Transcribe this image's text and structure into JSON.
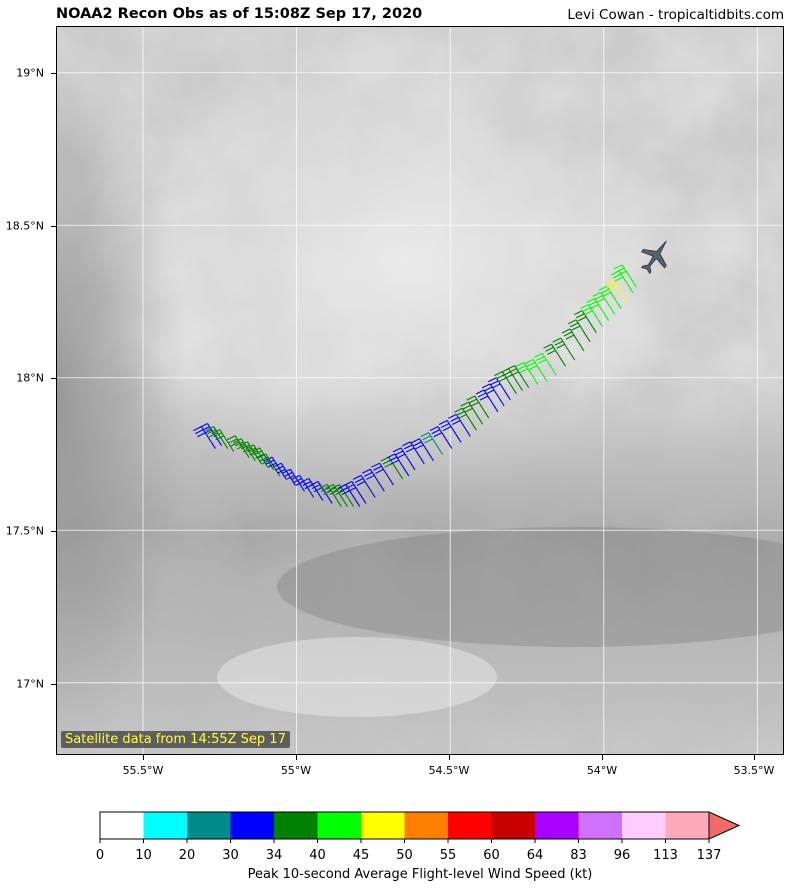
{
  "header": {
    "title": "NOAA2 Recon Obs as of 15:08Z Sep 17, 2020",
    "credit": "Levi Cowan - tropicaltidbits.com"
  },
  "map": {
    "lat_labels": [
      "19°N",
      "18.5°N",
      "18°N",
      "17.5°N",
      "17°N"
    ],
    "lat_values": [
      19.0,
      18.5,
      18.0,
      17.5,
      17.0
    ],
    "lon_labels": [
      "55.5°W",
      "55°W",
      "54.5°W",
      "54°W",
      "53.5°W"
    ],
    "lon_values": [
      -55.5,
      -55.0,
      -54.5,
      -54.0,
      -53.5
    ],
    "lat_range": [
      16.76,
      19.15
    ],
    "lon_range": [
      -55.78,
      -53.41
    ],
    "gridlines": true,
    "satellite_note": "Satellite data from 14:55Z Sep 17",
    "aircraft_icon": "airplane-icon",
    "aircraft_position": {
      "lat": 18.4,
      "lon": -53.83
    },
    "flight_obs": [
      {
        "lon": -55.31,
        "lat": 17.84,
        "color": "#0000ff"
      },
      {
        "lon": -55.29,
        "lat": 17.85,
        "color": "#0000ff"
      },
      {
        "lon": -55.27,
        "lat": 17.84,
        "color": "#008000"
      },
      {
        "lon": -55.25,
        "lat": 17.83,
        "color": "#008000"
      },
      {
        "lon": -55.2,
        "lat": 17.81,
        "color": "#008000"
      },
      {
        "lon": -55.18,
        "lat": 17.8,
        "color": "#008000"
      },
      {
        "lon": -55.16,
        "lat": 17.79,
        "color": "#008000"
      },
      {
        "lon": -55.14,
        "lat": 17.78,
        "color": "#008000"
      },
      {
        "lon": -55.12,
        "lat": 17.77,
        "color": "#008000"
      },
      {
        "lon": -55.1,
        "lat": 17.75,
        "color": "#008000"
      },
      {
        "lon": -55.08,
        "lat": 17.74,
        "color": "#0000ff"
      },
      {
        "lon": -55.05,
        "lat": 17.72,
        "color": "#0000ff"
      },
      {
        "lon": -55.02,
        "lat": 17.7,
        "color": "#0000ff"
      },
      {
        "lon": -54.99,
        "lat": 17.68,
        "color": "#0000ff"
      },
      {
        "lon": -54.96,
        "lat": 17.67,
        "color": "#0000ff"
      },
      {
        "lon": -54.93,
        "lat": 17.66,
        "color": "#0000ff"
      },
      {
        "lon": -54.9,
        "lat": 17.65,
        "color": "#008000"
      },
      {
        "lon": -54.88,
        "lat": 17.65,
        "color": "#008000"
      },
      {
        "lon": -54.86,
        "lat": 17.65,
        "color": "#008000"
      },
      {
        "lon": -54.84,
        "lat": 17.65,
        "color": "#0000ff"
      },
      {
        "lon": -54.82,
        "lat": 17.66,
        "color": "#0000ff"
      },
      {
        "lon": -54.79,
        "lat": 17.68,
        "color": "#0000ff"
      },
      {
        "lon": -54.76,
        "lat": 17.7,
        "color": "#0000ff"
      },
      {
        "lon": -54.73,
        "lat": 17.72,
        "color": "#0000ff"
      },
      {
        "lon": -54.7,
        "lat": 17.74,
        "color": "#008000"
      },
      {
        "lon": -54.68,
        "lat": 17.75,
        "color": "#0000ff"
      },
      {
        "lon": -54.66,
        "lat": 17.77,
        "color": "#0000ff"
      },
      {
        "lon": -54.63,
        "lat": 17.79,
        "color": "#0000ff"
      },
      {
        "lon": -54.6,
        "lat": 17.8,
        "color": "#0000ff"
      },
      {
        "lon": -54.57,
        "lat": 17.82,
        "color": "#008b8b"
      },
      {
        "lon": -54.54,
        "lat": 17.84,
        "color": "#0000ff"
      },
      {
        "lon": -54.51,
        "lat": 17.86,
        "color": "#0000ff"
      },
      {
        "lon": -54.48,
        "lat": 17.88,
        "color": "#0000ff"
      },
      {
        "lon": -54.46,
        "lat": 17.9,
        "color": "#008000"
      },
      {
        "lon": -54.44,
        "lat": 17.92,
        "color": "#008000"
      },
      {
        "lon": -54.42,
        "lat": 17.94,
        "color": "#008000"
      },
      {
        "lon": -54.39,
        "lat": 17.96,
        "color": "#0000ff"
      },
      {
        "lon": -54.37,
        "lat": 17.98,
        "color": "#0000ff"
      },
      {
        "lon": -54.35,
        "lat": 18.0,
        "color": "#0000ff"
      },
      {
        "lon": -54.33,
        "lat": 18.02,
        "color": "#008000"
      },
      {
        "lon": -54.31,
        "lat": 18.03,
        "color": "#008000"
      },
      {
        "lon": -54.29,
        "lat": 18.04,
        "color": "#008000"
      },
      {
        "lon": -54.26,
        "lat": 18.05,
        "color": "#00ff00"
      },
      {
        "lon": -54.23,
        "lat": 18.06,
        "color": "#00ff00"
      },
      {
        "lon": -54.2,
        "lat": 18.08,
        "color": "#00ff00"
      },
      {
        "lon": -54.17,
        "lat": 18.11,
        "color": "#008000"
      },
      {
        "lon": -54.14,
        "lat": 18.13,
        "color": "#008000"
      },
      {
        "lon": -54.11,
        "lat": 18.16,
        "color": "#008000"
      },
      {
        "lon": -54.09,
        "lat": 18.19,
        "color": "#008000"
      },
      {
        "lon": -54.07,
        "lat": 18.22,
        "color": "#008000"
      },
      {
        "lon": -54.05,
        "lat": 18.24,
        "color": "#00ff00"
      },
      {
        "lon": -54.03,
        "lat": 18.26,
        "color": "#00ff00"
      },
      {
        "lon": -54.01,
        "lat": 18.28,
        "color": "#00ff00"
      },
      {
        "lon": -53.99,
        "lat": 18.3,
        "color": "#00ff00"
      },
      {
        "lon": -53.97,
        "lat": 18.32,
        "color": "#ffff00"
      },
      {
        "lon": -53.95,
        "lat": 18.35,
        "color": "#00ff00"
      },
      {
        "lon": -53.94,
        "lat": 18.37,
        "color": "#00ff00"
      }
    ]
  },
  "colorbar": {
    "label": "Peak 10-second Average Flight-level Wind Speed (kt)",
    "ticks": [
      "0",
      "10",
      "20",
      "30",
      "34",
      "40",
      "45",
      "50",
      "55",
      "60",
      "64",
      "83",
      "96",
      "113",
      "137"
    ],
    "colors": [
      "#ffffff",
      "#00ffff",
      "#008b8b",
      "#0000ff",
      "#008000",
      "#00ff00",
      "#ffff00",
      "#ff7f00",
      "#ff0000",
      "#c80000",
      "#aa00ff",
      "#d070ff",
      "#ffccff",
      "#ffaabb"
    ],
    "extend_color": "#f06a6a"
  }
}
